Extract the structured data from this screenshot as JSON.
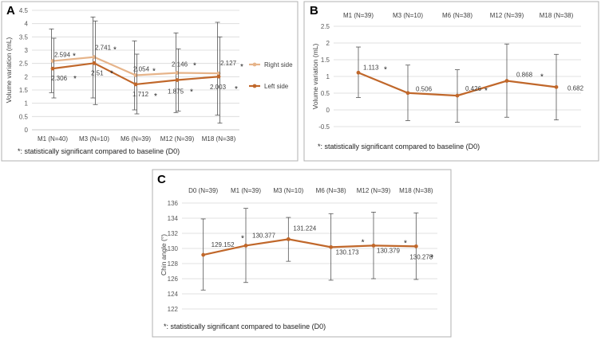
{
  "chart_data": [
    {
      "panel": "A",
      "type": "line",
      "categories": [
        "M1 (N=40)",
        "M3 (N=10)",
        "M6 (N=39)",
        "M12 (N=39)",
        "M18 (N=38)"
      ],
      "ylabel": "Volume variation (mL)",
      "ylim": [
        0,
        4.5
      ],
      "yticks": [
        "0",
        "0.5",
        "1",
        "1.5",
        "2",
        "2.5",
        "3",
        "3.5",
        "4",
        "4.5"
      ],
      "series": [
        {
          "name": "Right side",
          "color": "#e6b48a",
          "values": [
            2.594,
            2.741,
            2.054,
            2.146,
            2.127
          ],
          "labels": [
            "2.594",
            "2.741",
            "2.054",
            "2.146",
            "2.127"
          ],
          "error_low": [
            1.4,
            1.2,
            0.75,
            0.65,
            0.55
          ],
          "error_high": [
            3.8,
            4.25,
            3.35,
            3.65,
            4.05
          ]
        },
        {
          "name": "Left side",
          "color": "#c0672a",
          "values": [
            2.306,
            2.51,
            1.712,
            1.875,
            2.003
          ],
          "labels": [
            "2.306",
            "2.51",
            "1.712",
            "1.875",
            "2.003"
          ],
          "error_low": [
            1.2,
            0.95,
            0.6,
            0.7,
            0.25
          ],
          "error_high": [
            3.45,
            4.1,
            2.85,
            3.05,
            3.5
          ]
        }
      ],
      "footnote": "*: statistically significant compared to baseline (D0)"
    },
    {
      "panel": "B",
      "type": "line",
      "categories": [
        "M1 (N=39)",
        "M3 (N=10)",
        "M6 (N=38)",
        "M12 (N=39)",
        "M18 (N=38)"
      ],
      "ylabel": "Volume variation (mL)",
      "ylim": [
        -0.5,
        2.5
      ],
      "yticks": [
        "-0.5",
        "0",
        "0.5",
        "1",
        "1.5",
        "2",
        "2.5"
      ],
      "series": [
        {
          "name": "Volume",
          "color": "#c0672a",
          "values": [
            1.113,
            0.506,
            0.426,
            0.868,
            0.682
          ],
          "labels": [
            "1.113",
            "0.506",
            "0.426",
            "0.868",
            "0.682"
          ],
          "error_low": [
            0.37,
            -0.32,
            -0.37,
            -0.22,
            -0.3
          ],
          "error_high": [
            1.88,
            1.34,
            1.2,
            1.97,
            1.66
          ]
        }
      ],
      "footnote": "*: statistically significant compared to baseline (D0)"
    },
    {
      "panel": "C",
      "type": "line",
      "categories": [
        "D0 (N=39)",
        "M1 (N=39)",
        "M3 (N=10)",
        "M6 (N=38)",
        "M12 (N=39)",
        "M18 (N=38)"
      ],
      "ylabel": "Chin angle (°)",
      "ylim": [
        122,
        136
      ],
      "yticks": [
        "122",
        "124",
        "126",
        "128",
        "130",
        "132",
        "134",
        "136"
      ],
      "series": [
        {
          "name": "Chin angle",
          "color": "#c0672a",
          "values": [
            129.152,
            130.377,
            131.224,
            130.173,
            130.379,
            130.278
          ],
          "labels": [
            "129.152",
            "130.377",
            "131.224",
            "130.173",
            "130.379",
            "130.278"
          ],
          "error_low": [
            124.5,
            125.5,
            128.3,
            125.8,
            126.0,
            125.9
          ],
          "error_high": [
            133.9,
            135.3,
            134.1,
            134.6,
            134.8,
            134.7
          ]
        }
      ],
      "footnote": "*: statistically significant compared to baseline (D0)"
    }
  ],
  "panels": {
    "a": {
      "letter": "A"
    },
    "b": {
      "letter": "B"
    },
    "c": {
      "letter": "C"
    }
  },
  "significance_mark": "*"
}
